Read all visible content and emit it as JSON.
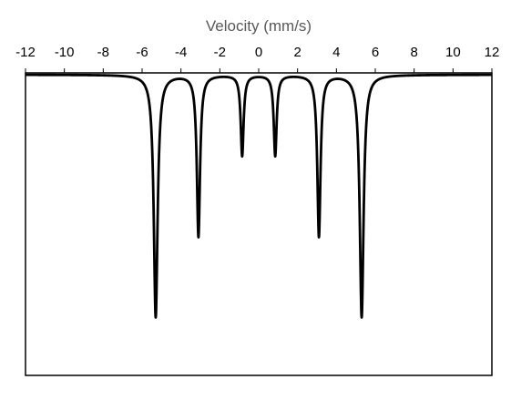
{
  "chart_data": {
    "type": "line",
    "title": "",
    "xlabel": "Velocity (mm/s)",
    "ylabel": "",
    "x_axis_position": "top",
    "xlim": [
      -12,
      12
    ],
    "x_ticks": [
      -12,
      -10,
      -8,
      -6,
      -4,
      -2,
      0,
      2,
      4,
      6,
      8,
      10,
      12
    ],
    "x_tick_labels": [
      "-12",
      "-10",
      "-8",
      "-6",
      "-4",
      "-2",
      "0",
      "2",
      "4",
      "6",
      "8",
      "10",
      "12"
    ],
    "y_axis_visible": false,
    "ylim": [
      0,
      1
    ],
    "grid": false,
    "legend": "none",
    "series": [
      {
        "line_color": "#000000",
        "baseline": 1.0,
        "peak_shape": "lorentzian",
        "peaks": [
          {
            "center": -5.3,
            "depth": 0.78,
            "width": 0.12
          },
          {
            "center": -3.1,
            "depth": 0.52,
            "width": 0.1
          },
          {
            "center": -0.85,
            "depth": 0.26,
            "width": 0.09
          },
          {
            "center": 0.85,
            "depth": 0.26,
            "width": 0.09
          },
          {
            "center": 3.1,
            "depth": 0.52,
            "width": 0.1
          },
          {
            "center": 5.3,
            "depth": 0.78,
            "width": 0.12
          }
        ]
      }
    ]
  }
}
